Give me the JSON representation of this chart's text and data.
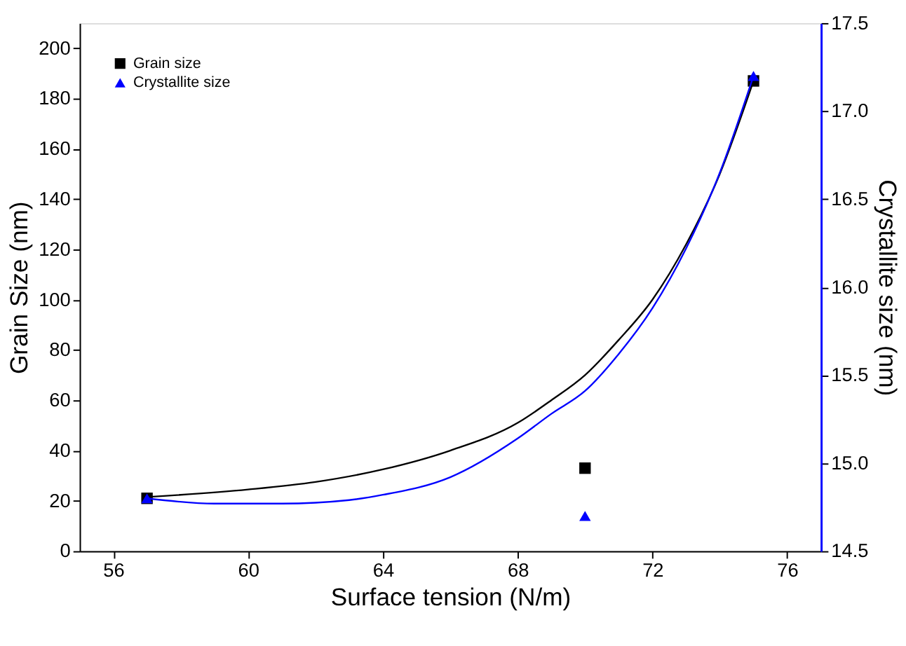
{
  "chart_data": {
    "type": "scatter",
    "xlabel": "Surface tension  (N/m)",
    "ylabel": "Grain Size (nm)",
    "y2label": "Crystallite size (nm)",
    "xlim": [
      55,
      77
    ],
    "xticks": [
      56,
      60,
      64,
      68,
      72,
      76
    ],
    "ylim": [
      0,
      210
    ],
    "yticks": [
      0,
      20,
      40,
      60,
      80,
      100,
      120,
      140,
      160,
      180,
      200
    ],
    "y2lim": [
      14.5,
      17.5
    ],
    "y2ticks": [
      {
        "value": 14.5,
        "label": "14.5"
      },
      {
        "value": 15,
        "label": "15.0"
      },
      {
        "value": 15.5,
        "label": "15.5"
      },
      {
        "value": 16,
        "label": "16.0"
      },
      {
        "value": 16.5,
        "label": "16.5"
      },
      {
        "value": 17,
        "label": "17.0"
      },
      {
        "value": 17.5,
        "label": "17.5"
      }
    ],
    "grid": false,
    "legend": "top left",
    "series": [
      {
        "name": "Grain size",
        "marker": "square",
        "color": "#000000",
        "x": [
          57,
          70,
          75
        ],
        "values": [
          21,
          33,
          187
        ]
      },
      {
        "name": "Crystallite size",
        "marker": "triangle",
        "color": "#0000ff",
        "axis": "y2",
        "x": [
          57,
          70,
          75
        ],
        "values": [
          14.8,
          14.7,
          17.2
        ]
      },
      {
        "type": "line",
        "marker": "none",
        "line_style": "solid",
        "color": "#000000",
        "x": [
          57,
          60,
          62,
          64,
          66,
          68,
          69,
          70,
          71,
          72,
          73,
          74,
          75
        ],
        "values": [
          21.5,
          24.5,
          27.5,
          32.5,
          40,
          51,
          60,
          70,
          84,
          100,
          122,
          150,
          187
        ]
      },
      {
        "type": "line",
        "marker": "none",
        "line_style": "solid",
        "color": "#0000ff",
        "axis": "y2",
        "x": [
          57,
          59,
          61,
          63,
          64,
          66,
          68,
          69,
          70,
          71,
          72,
          73,
          74,
          75
        ],
        "values": [
          14.8,
          14.77,
          14.77,
          14.79,
          14.82,
          14.92,
          15.14,
          15.28,
          15.41,
          15.62,
          15.88,
          16.22,
          16.65,
          17.2
        ]
      }
    ]
  }
}
